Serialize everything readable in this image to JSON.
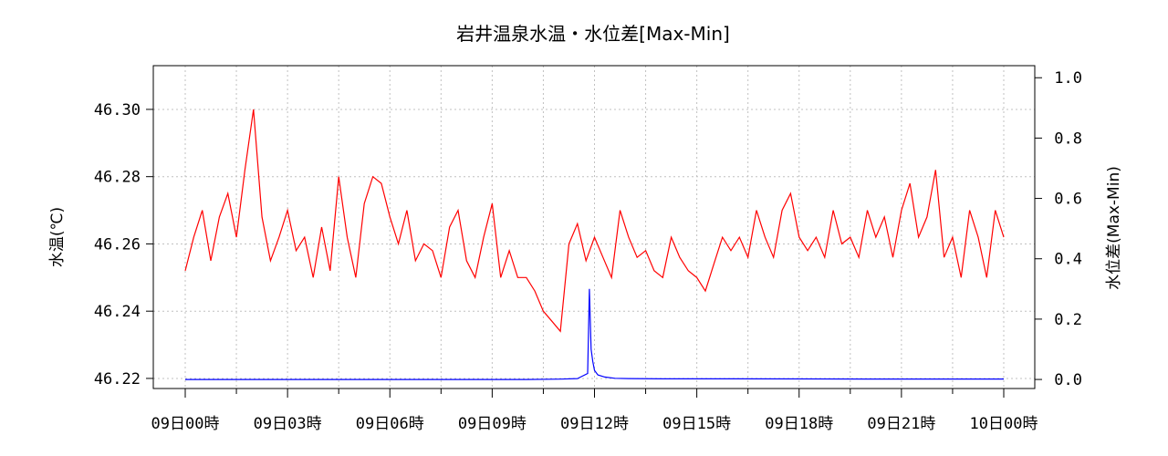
{
  "chart_data": {
    "type": "line",
    "title": "岩井温泉水温・水位差[Max-Min]",
    "ylabel_left": "水温(℃)",
    "ylabel_right": "水位差(Max-Min)",
    "xlabel": "",
    "x_tick_labels": [
      "09日00時",
      "09日03時",
      "09日06時",
      "09日09時",
      "09日12時",
      "09日15時",
      "09日18時",
      "09日21時",
      "10日00時"
    ],
    "x_range_hours": [
      0,
      24
    ],
    "y_left_ticks": [
      "46.22",
      "46.24",
      "46.26",
      "46.28",
      "46.30"
    ],
    "y_left_lim": [
      46.217,
      46.313
    ],
    "y_right_ticks": [
      "0.0",
      "0.2",
      "0.4",
      "0.6",
      "0.8",
      "1.0"
    ],
    "y_right_lim": [
      -0.03,
      1.04
    ],
    "grid": true,
    "series": [
      {
        "axis": "left",
        "color": "#ff0000",
        "x": [
          0.0,
          0.25,
          0.5,
          0.75,
          1.0,
          1.25,
          1.5,
          1.75,
          2.0,
          2.25,
          2.5,
          2.75,
          3.0,
          3.25,
          3.5,
          3.75,
          4.0,
          4.25,
          4.5,
          4.75,
          5.0,
          5.25,
          5.5,
          5.75,
          6.0,
          6.25,
          6.5,
          6.75,
          7.0,
          7.25,
          7.5,
          7.75,
          8.0,
          8.25,
          8.5,
          8.75,
          9.0,
          9.25,
          9.5,
          9.75,
          10.0,
          10.25,
          10.5,
          10.75,
          11.0,
          11.25,
          11.5,
          11.75,
          12.0,
          12.25,
          12.5,
          12.75,
          13.0,
          13.25,
          13.5,
          13.75,
          14.0,
          14.25,
          14.5,
          14.75,
          15.0,
          15.25,
          15.5,
          15.75,
          16.0,
          16.25,
          16.5,
          16.75,
          17.0,
          17.25,
          17.5,
          17.75,
          18.0,
          18.25,
          18.5,
          18.75,
          19.0,
          19.25,
          19.5,
          19.75,
          20.0,
          20.25,
          20.5,
          20.75,
          21.0,
          21.25,
          21.5,
          21.75,
          22.0,
          22.25,
          22.5,
          22.75,
          23.0,
          23.25,
          23.5,
          23.75,
          24.0
        ],
        "y": [
          46.252,
          46.262,
          46.27,
          46.255,
          46.268,
          46.275,
          46.262,
          46.282,
          46.3,
          46.268,
          46.255,
          46.262,
          46.27,
          46.258,
          46.262,
          46.25,
          46.265,
          46.252,
          46.28,
          46.262,
          46.25,
          46.272,
          46.28,
          46.278,
          46.268,
          46.26,
          46.27,
          46.255,
          46.26,
          46.258,
          46.25,
          46.265,
          46.27,
          46.255,
          46.25,
          46.262,
          46.272,
          46.25,
          46.258,
          46.25,
          46.25,
          46.246,
          46.24,
          46.237,
          46.234,
          46.26,
          46.266,
          46.255,
          46.262,
          46.256,
          46.25,
          46.27,
          46.262,
          46.256,
          46.258,
          46.252,
          46.25,
          46.262,
          46.256,
          46.252,
          46.25,
          46.246,
          46.254,
          46.262,
          46.258,
          46.262,
          46.256,
          46.27,
          46.262,
          46.256,
          46.27,
          46.275,
          46.262,
          46.258,
          46.262,
          46.256,
          46.27,
          46.26,
          46.262,
          46.256,
          46.27,
          46.262,
          46.268,
          46.256,
          46.27,
          46.278,
          46.262,
          46.268,
          46.282,
          46.256,
          46.262,
          46.25,
          46.27,
          46.262,
          46.25,
          46.27,
          46.262
        ]
      },
      {
        "axis": "right",
        "color": "#0000ff",
        "x": [
          0.0,
          10.0,
          11.0,
          11.5,
          11.8,
          11.85,
          11.9,
          11.95,
          12.0,
          12.1,
          12.3,
          12.6,
          13.0,
          14.0,
          16.0,
          20.0,
          24.0
        ],
        "y": [
          0.0,
          0.0,
          0.001,
          0.003,
          0.02,
          0.3,
          0.1,
          0.06,
          0.03,
          0.015,
          0.008,
          0.004,
          0.003,
          0.002,
          0.002,
          0.0015,
          0.0015
        ]
      }
    ]
  }
}
